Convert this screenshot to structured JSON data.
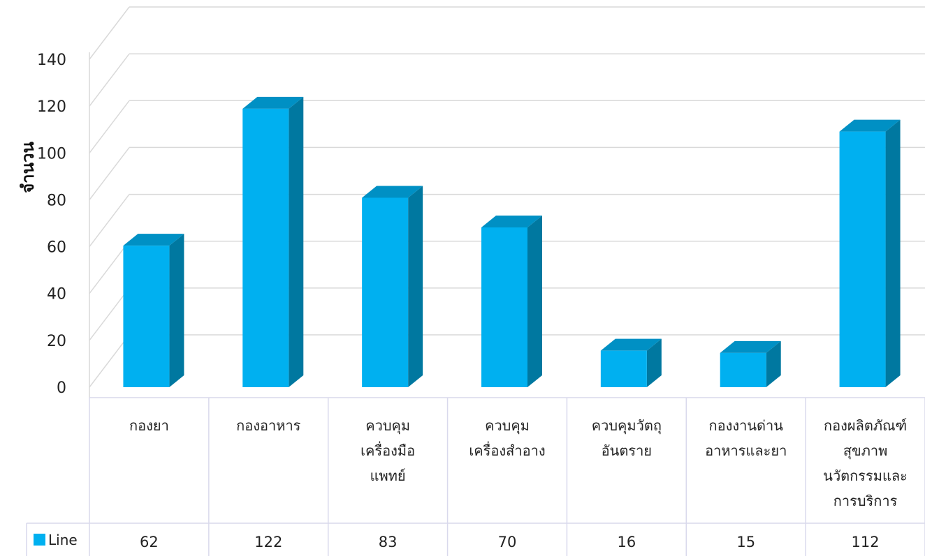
{
  "chart_data": {
    "type": "bar",
    "title": "",
    "xlabel": "",
    "ylabel": "จำนวน",
    "ylim": [
      0,
      140
    ],
    "ytick_step": 20,
    "grid": true,
    "style": "3d-column-with-data-table",
    "categories": [
      [
        "กองยา"
      ],
      [
        "กองอาหาร"
      ],
      [
        "ควบคุม",
        "เครื่องมือ",
        "แพทย์"
      ],
      [
        "ควบคุม",
        "เครื่องสำอาง"
      ],
      [
        "ควบคุมวัตถุ",
        "อันตราย"
      ],
      [
        "กองงานด่าน",
        "อาหารและยา"
      ],
      [
        "กองผลิตภัณฑ์",
        "สุขภาพ",
        "นวัตกรรมและ",
        "การบริการ"
      ]
    ],
    "series": [
      {
        "name": "Line",
        "values": [
          62,
          122,
          83,
          70,
          16,
          15,
          112
        ]
      }
    ],
    "legend": "data-table-left",
    "colors": {
      "front": "#00b0f0",
      "side": "#0078a0",
      "top": "#0090c4",
      "grid": "#d9d9d9",
      "table": "#d9d9ec"
    }
  }
}
